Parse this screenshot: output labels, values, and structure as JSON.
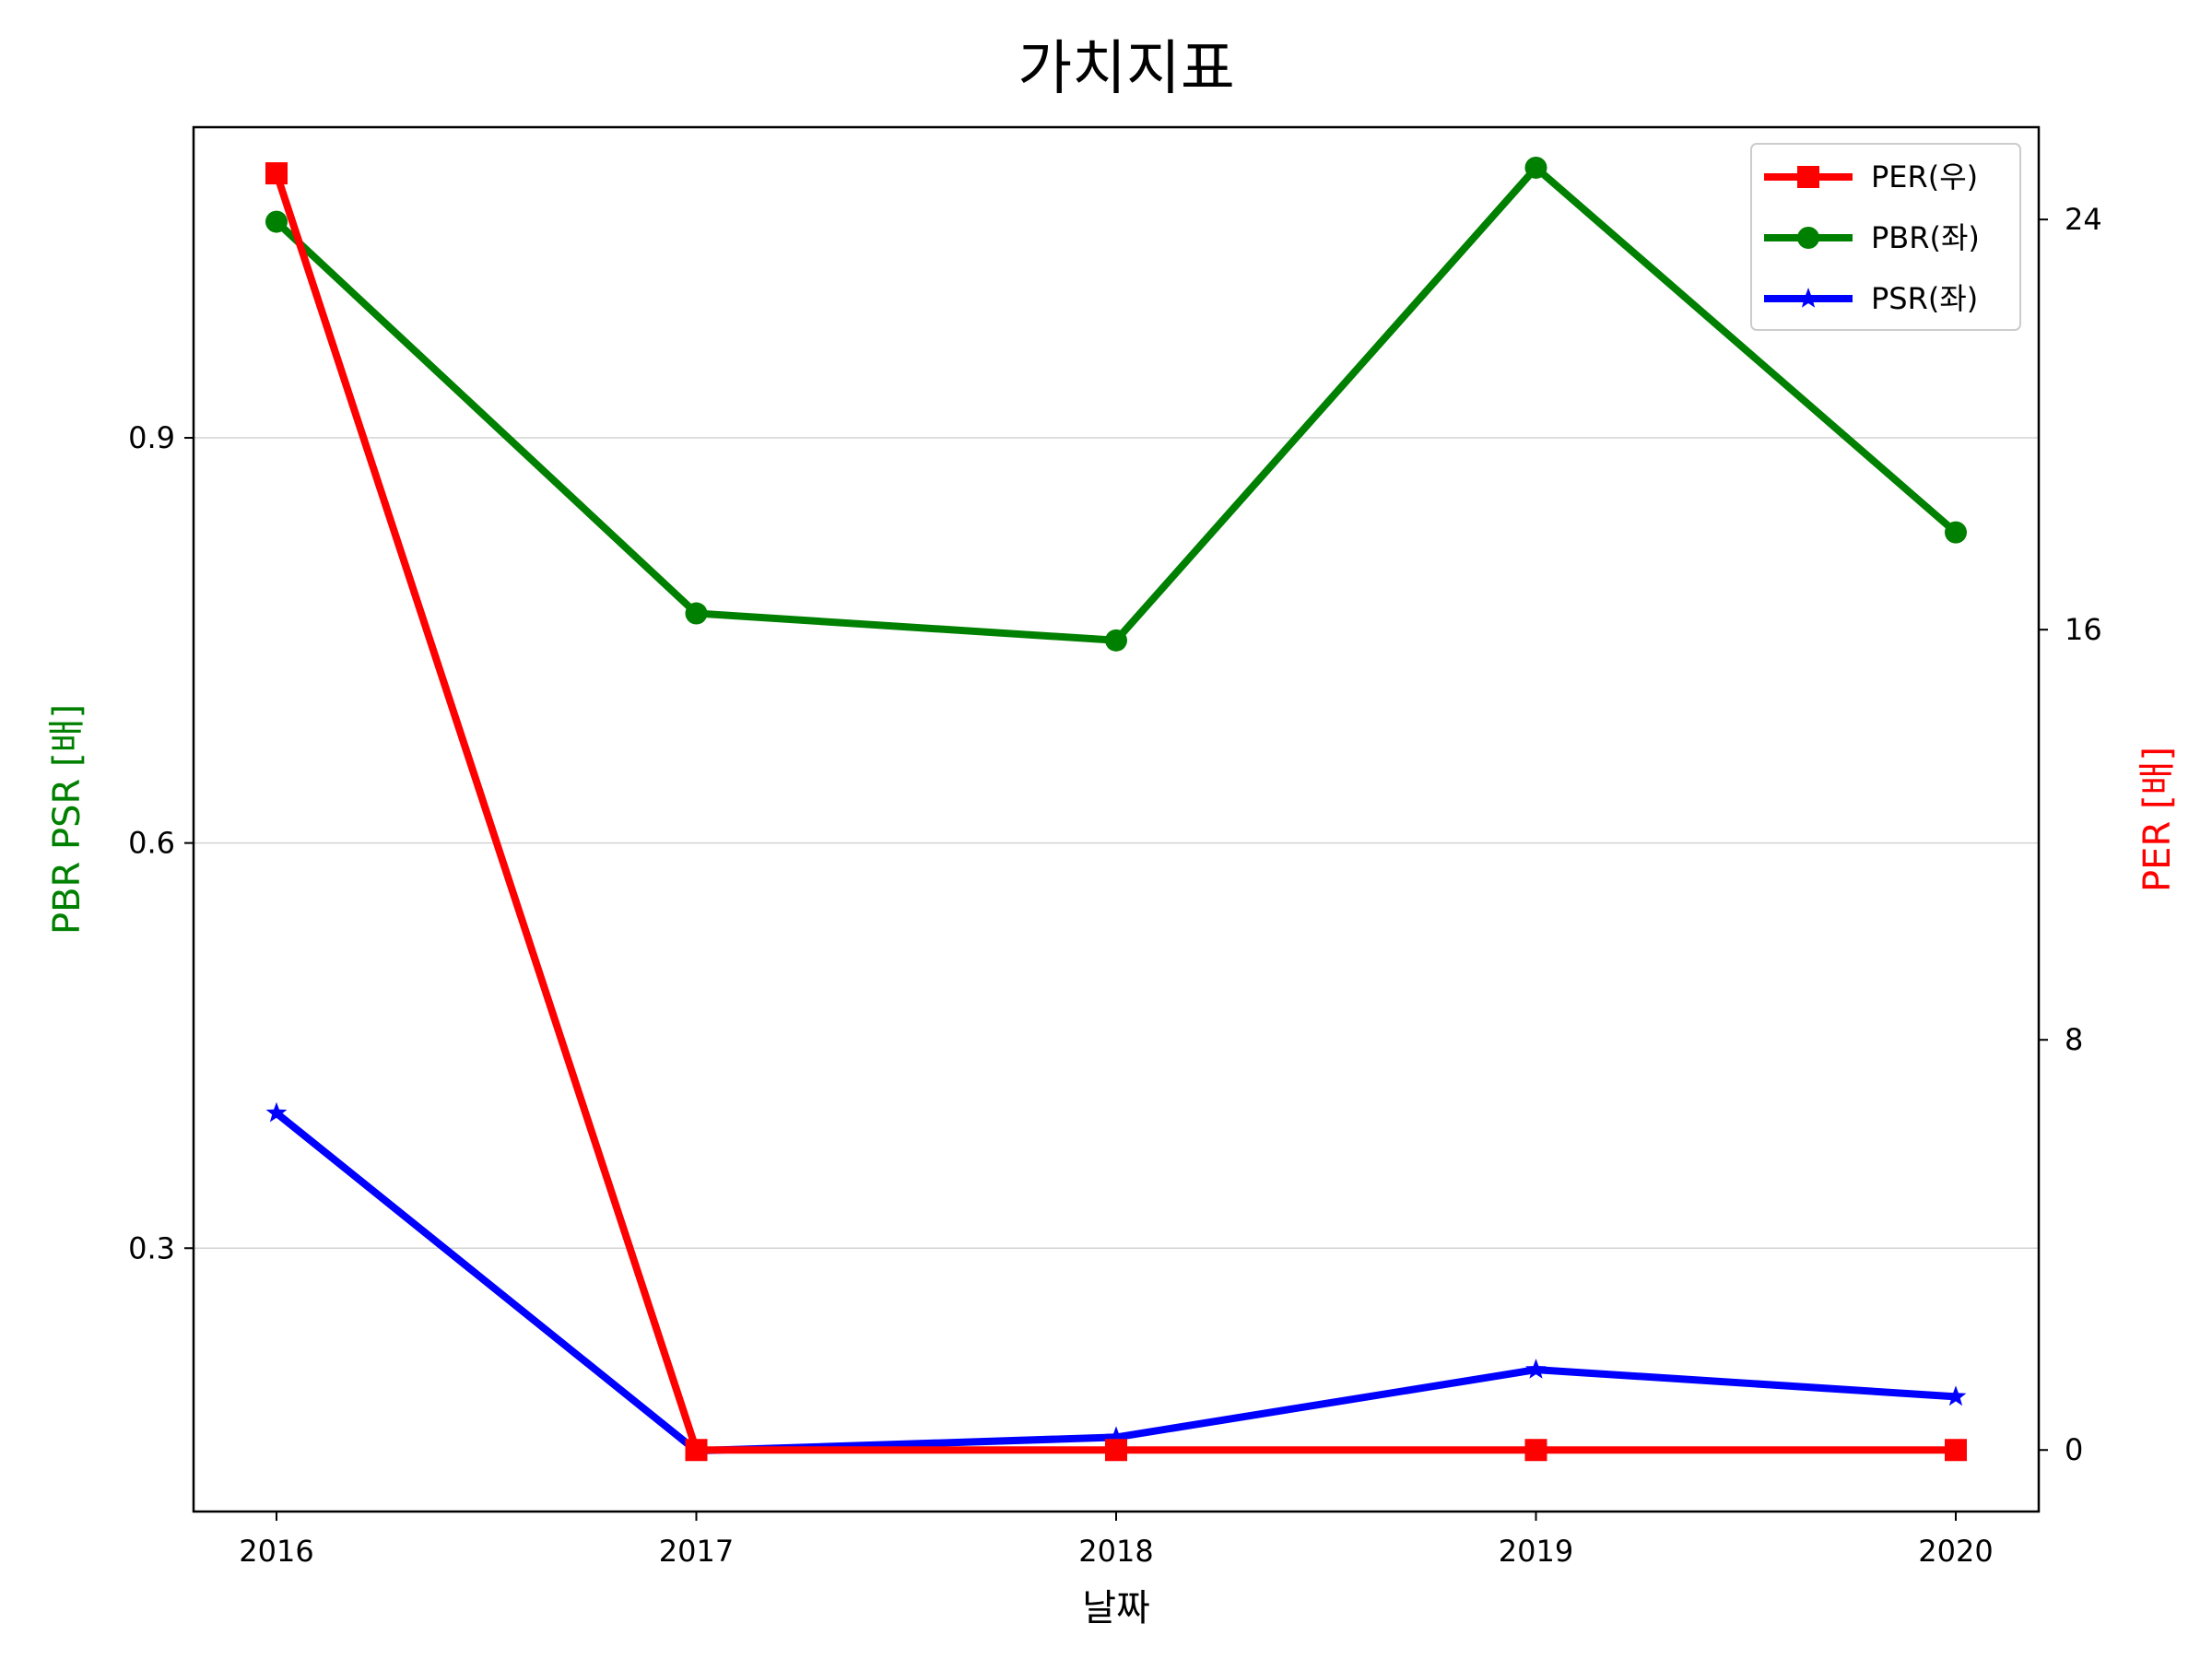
{
  "chart_data": {
    "type": "line",
    "title": "가치지표",
    "xlabel": "날짜",
    "ylabel_left": "PBR PSR [배]",
    "ylabel_right": "PER [배]",
    "categories": [
      "2016",
      "2017",
      "2018",
      "2019",
      "2020"
    ],
    "ylim_left": [
      0.105,
      1.13
    ],
    "ylim_right": [
      -1.2,
      25.8
    ],
    "yticks_left": [
      0.3,
      0.6,
      0.9
    ],
    "yticks_right": [
      0,
      8,
      16,
      24
    ],
    "grid": "horizontal",
    "legend_position": "top-right",
    "series": [
      {
        "name": "PER(우)",
        "axis": "right",
        "color": "#ff0000",
        "marker": "square",
        "values": [
          24.9,
          0,
          0,
          0,
          0
        ]
      },
      {
        "name": "PBR(좌)",
        "axis": "left",
        "color": "#008000",
        "marker": "circle",
        "values": [
          1.06,
          0.77,
          0.75,
          1.1,
          0.83
        ]
      },
      {
        "name": "PSR(좌)",
        "axis": "left",
        "color": "#0000ff",
        "marker": "star",
        "values": [
          0.4,
          0.15,
          0.16,
          0.21,
          0.19
        ]
      }
    ]
  }
}
